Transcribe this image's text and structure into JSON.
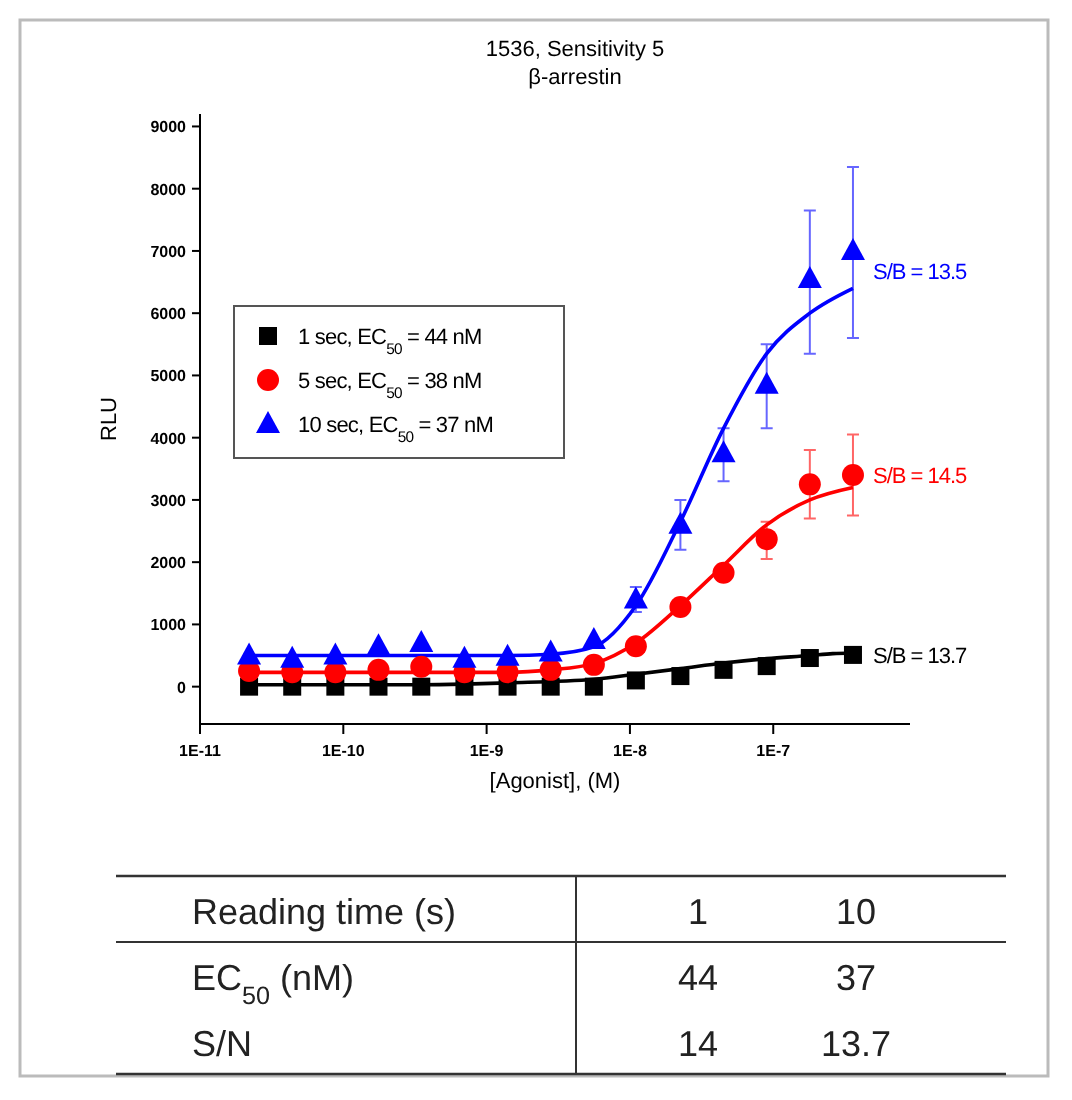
{
  "chart_data": {
    "type": "scatter",
    "title": "1536, Sensitivity 5",
    "subtitle": "β-arrestin",
    "xlabel": "[Agonist], (M)",
    "ylabel": "RLU",
    "log": "x",
    "xlim": [
      1e-11,
      9e-07
    ],
    "xticks": [
      {
        "value": 1e-11,
        "label": "1E-11"
      },
      {
        "value": 1e-10,
        "label": "1E-10"
      },
      {
        "value": 1e-09,
        "label": "1E-9"
      },
      {
        "value": 1e-08,
        "label": "1E-8"
      },
      {
        "value": 1e-07,
        "label": "1E-7"
      }
    ],
    "ylim": [
      -600,
      9200
    ],
    "yticks": [
      0,
      1000,
      2000,
      3000,
      4000,
      5000,
      6000,
      7000,
      8000,
      9000
    ],
    "grid": false,
    "legend": "top left",
    "x": [
      2.2e-11,
      4.4e-11,
      8.8e-11,
      1.76e-10,
      3.5e-10,
      7e-10,
      1.4e-09,
      2.8e-09,
      5.6e-09,
      1.1e-08,
      2.25e-08,
      4.5e-08,
      9e-08,
      1.8e-07,
      3.6e-07
    ],
    "series": [
      {
        "name": "1 sec, EC$_{50}$ = 44 nM",
        "color": "#000000",
        "marker": "square",
        "values": [
          0,
          0,
          0,
          0,
          0,
          0,
          0,
          0,
          0,
          100,
          170,
          270,
          330,
          460,
          510
        ]
      },
      {
        "name": "5 sec, EC$_{50}$ = 38 nM",
        "color": "#ff0000",
        "marker": "circle",
        "values": [
          250,
          230,
          230,
          270,
          320,
          230,
          230,
          270,
          350,
          650,
          1280,
          1830,
          2370,
          3250,
          3400
        ],
        "errors": [
          null,
          null,
          null,
          null,
          null,
          null,
          null,
          null,
          null,
          null,
          null,
          null,
          [
            2050,
            2650
          ],
          [
            2700,
            3800
          ],
          [
            2750,
            4050
          ]
        ]
      },
      {
        "name": "10 sec, EC$_{50}$ = 37 nM",
        "color": "#0000ff",
        "marker": "triangle",
        "values": [
          500,
          450,
          500,
          650,
          700,
          450,
          480,
          550,
          750,
          1400,
          2600,
          3750,
          4850,
          6550,
          7000
        ],
        "errors": [
          null,
          null,
          null,
          null,
          null,
          null,
          null,
          null,
          null,
          [
            1200,
            1600
          ],
          [
            2200,
            3000
          ],
          [
            3300,
            4150
          ],
          [
            4150,
            5500
          ],
          [
            5350,
            7650
          ],
          [
            5600,
            8350
          ]
        ]
      },
      {
        "type": "line",
        "color": "#000000",
        "values": [
          30,
          30,
          30,
          30,
          30,
          40,
          60,
          120,
          200,
          290,
          380,
          450,
          500,
          530,
          540
        ],
        "x": [
          2.2e-11,
          4.4e-11,
          8.8e-11,
          1.76e-10,
          3.5e-10,
          7e-10,
          1.4e-09,
          5.6e-09,
          1.1e-08,
          2.25e-08,
          4.5e-08,
          9e-08,
          1.8e-07,
          2.6e-07,
          3.6e-07
        ]
      },
      {
        "type": "line",
        "color": "#ff0000",
        "values": [
          230,
          230,
          230,
          230,
          230,
          230,
          230,
          270,
          370,
          700,
          1300,
          1950,
          2600,
          3000,
          3200
        ]
      },
      {
        "type": "line",
        "color": "#0000ff",
        "values": [
          500,
          500,
          500,
          500,
          500,
          500,
          500,
          520,
          640,
          1300,
          2650,
          4150,
          5350,
          6000,
          6400
        ]
      }
    ],
    "annotations": [
      "S/B = 13.7",
      "S/B = 14.5",
      "S/B = 13.5",
      "Reading time (s)",
      "1",
      "10",
      "EC$_{50}$ (nM)",
      "44",
      "37",
      "S/N",
      "14",
      "13.7"
    ]
  }
}
